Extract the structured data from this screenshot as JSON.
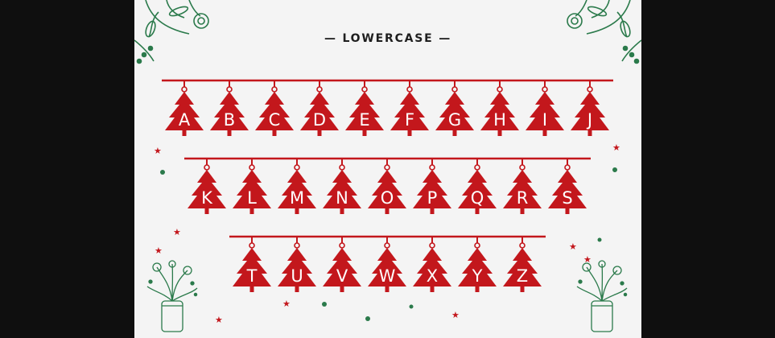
{
  "heading": "— LOWERCASE —",
  "colors": {
    "accent": "#c3171c",
    "decor": "#2b7a4b",
    "background": "#f4f4f4",
    "frame": "#0f0f0f"
  },
  "rows": [
    [
      "A",
      "B",
      "C",
      "D",
      "E",
      "F",
      "G",
      "H",
      "I",
      "J"
    ],
    [
      "K",
      "L",
      "M",
      "N",
      "O",
      "P",
      "Q",
      "R",
      "S"
    ],
    [
      "T",
      "U",
      "V",
      "W",
      "X",
      "Y",
      "Z"
    ]
  ],
  "decorations": [
    "floral-branch-icon",
    "flower-jar-icon",
    "star-icon",
    "dot-icon"
  ]
}
